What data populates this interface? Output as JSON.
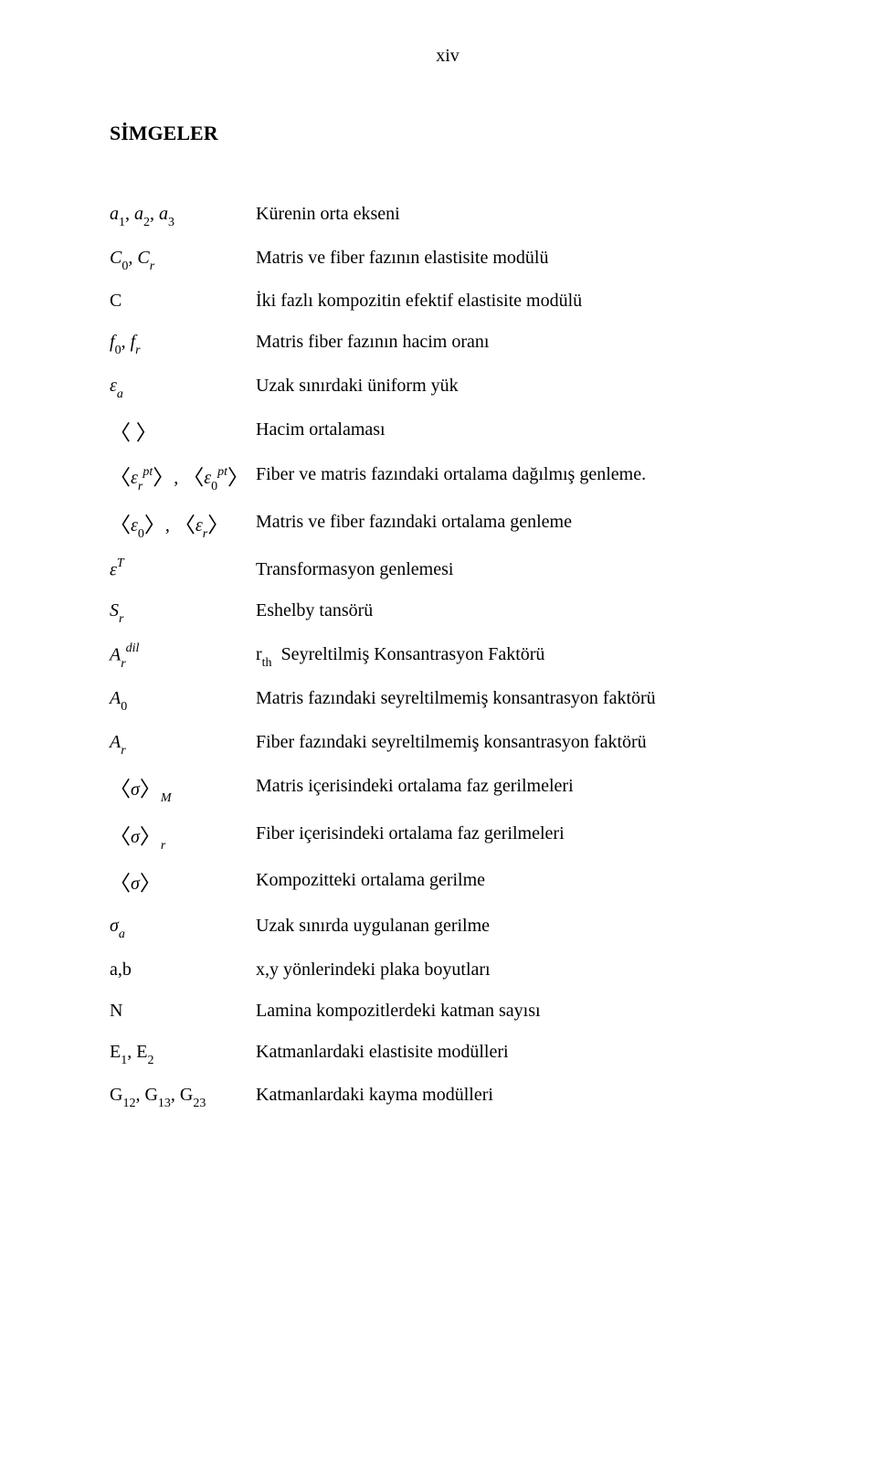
{
  "page_number": "xiv",
  "heading": "SİMGELER",
  "rows": [
    {
      "sym_html": "<span class='it'>a</span><span class='sub'>1</span>, <span class='it'>a</span><span class='sub'>2</span>, <span class='it'>a</span><span class='sub'>3</span>",
      "desc": "Kürenin orta ekseni"
    },
    {
      "sym_html": "<span class='it'>C</span><span class='sub'>0</span>, <span class='it'>C</span><span class='sub it'>r</span>",
      "desc": "Matris ve fiber fazının elastisite modülü"
    },
    {
      "sym_html": "C",
      "desc": "İki fazlı kompozitin efektif elastisite modülü"
    },
    {
      "sym_html": "<span class='it'>f</span><span class='sub'>0</span>, <span class='it'>f</span><span class='sub it'>r</span>",
      "desc": "Matris fiber fazının hacim oranı"
    },
    {
      "sym_html": "<span class='it greek'>ε</span><span class='sub it'>a</span>",
      "desc": "Uzak sınırdaki üniform yük"
    },
    {
      "sym_html": "<span class='angle'>〈&nbsp;〉</span>",
      "desc": "Hacim ortalaması"
    },
    {
      "sym_html": "<span class='angle'>〈</span><span class='it greek'>ε</span><span class='sub it'>r</span><span class='sup it'>pt</span><span class='angle'>〉</span>, <span class='angle'>〈</span><span class='it greek'>ε</span><span class='sub'>0</span><span class='sup it'>pt</span><span class='angle'>〉</span>",
      "desc": "Fiber ve matris fazındaki ortalama dağılmış genleme."
    },
    {
      "sym_html": "<span class='angle'>〈</span><span class='it greek'>ε</span><span class='sub'>0</span><span class='angle'>〉</span>, <span class='angle'>〈</span><span class='it greek'>ε</span><span class='sub it'>r</span><span class='angle'>〉</span>",
      "desc": "Matris ve fiber fazındaki ortalama genleme"
    },
    {
      "sym_html": "<span class='it greek'>ε</span><span class='sup it'>T</span>",
      "desc": "Transformasyon genlemesi"
    },
    {
      "sym_html": "<span class='it'>S</span><span class='sub it'>r</span>",
      "desc": "Eshelby tansörü"
    },
    {
      "sym_html": "<span class='it'>A</span><span class='sub it'>r</span><span class='sup it'>dil</span>",
      "desc_html": "<span class='it'>r</span><span class='sub it'>th</span>&nbsp; Seyreltilmiş Konsantrasyon Faktörü"
    },
    {
      "sym_html": "<span class='it'>A</span><span class='sub'>0</span>",
      "desc": "Matris fazındaki seyreltilmemiş konsantrasyon faktörü"
    },
    {
      "sym_html": "<span class='it'>A</span><span class='sub it'>r</span>",
      "desc": "Fiber fazındaki seyreltilmemiş konsantrasyon faktörü"
    },
    {
      "sym_html": "<span class='angle'>〈</span><span class='it greek'>σ</span><span class='angle'>〉</span><span class='sub it'>M</span>",
      "desc": "Matris içerisindeki ortalama faz gerilmeleri"
    },
    {
      "sym_html": "<span class='angle'>〈</span><span class='it greek'>σ</span><span class='angle'>〉</span><span class='sub it'>r</span>",
      "desc": "Fiber içerisindeki ortalama faz gerilmeleri"
    },
    {
      "sym_html": "<span class='angle'>〈</span><span class='it greek'>σ</span><span class='angle'>〉</span>",
      "desc": "Kompozitteki ortalama gerilme"
    },
    {
      "sym_html": "<span class='it greek'>σ</span><span class='sub it'>a</span>",
      "desc": "Uzak sınırda uygulanan gerilme"
    },
    {
      "sym_html": "a,b",
      "desc": "x,y yönlerindeki plaka boyutları"
    },
    {
      "sym_html": "N",
      "desc": "Lamina kompozitlerdeki katman sayısı"
    },
    {
      "sym_html": "E<span class='sub'>1</span>, E<span class='sub'>2</span>",
      "desc": "Katmanlardaki elastisite modülleri"
    },
    {
      "sym_html": "G<span class='sub'>12</span>, G<span class='sub'>13</span>, G<span class='sub'>23</span>",
      "desc": "Katmanlardaki kayma modülleri"
    }
  ]
}
